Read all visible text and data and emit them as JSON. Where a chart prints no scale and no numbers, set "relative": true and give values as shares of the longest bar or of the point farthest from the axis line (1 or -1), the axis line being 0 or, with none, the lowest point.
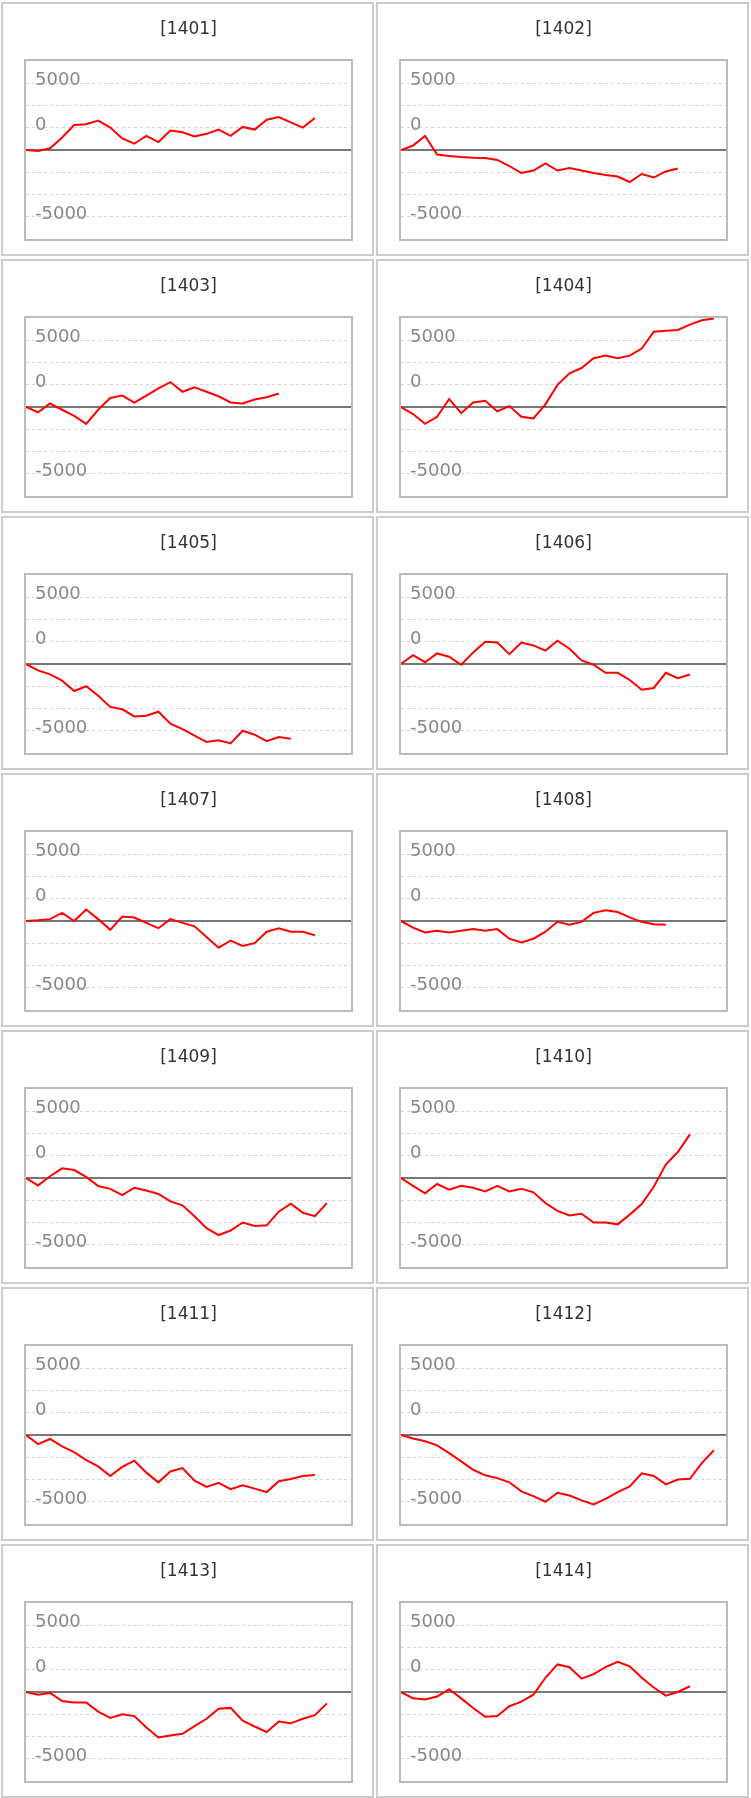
{
  "chart_data": [
    {
      "type": "line",
      "title": "[1401]",
      "relative": true,
      "categories": [
        null,
        null,
        null,
        null,
        null,
        null,
        null,
        null,
        null,
        null,
        null,
        null,
        null,
        null,
        null,
        null,
        null,
        null,
        null,
        null,
        null,
        null,
        null,
        null,
        null,
        null,
        null,
        null
      ],
      "series": [
        {
          "color": "#ff0000",
          "values": [
            0,
            -0.03,
            0.05,
            0.38,
            0.76,
            0.78,
            0.89,
            0.68,
            0.35,
            0.19,
            0.43,
            0.24,
            0.59,
            0.54,
            0.41,
            0.49,
            0.62,
            0.43,
            0.7,
            0.62,
            0.92,
            1,
            0.84,
            0.68,
            0.97,
            null,
            null,
            null
          ]
        }
      ],
      "ylim": [
        -2.7,
        2.7
      ],
      "annotations": [
        "5000",
        "0",
        "-5000"
      ],
      "grid": "y"
    },
    {
      "type": "line",
      "title": "[1402]",
      "relative": true,
      "categories": [
        null,
        null,
        null,
        null,
        null,
        null,
        null,
        null,
        null,
        null,
        null,
        null,
        null,
        null,
        null,
        null,
        null,
        null,
        null,
        null,
        null,
        null,
        null,
        null,
        null,
        null,
        null,
        null
      ],
      "series": [
        {
          "color": "#ff0000",
          "values": [
            0,
            0.14,
            0.44,
            -0.14,
            -0.19,
            -0.22,
            -0.24,
            -0.25,
            -0.31,
            -0.5,
            -0.72,
            -0.64,
            -0.42,
            -0.64,
            -0.56,
            -0.64,
            -0.72,
            -0.78,
            -0.83,
            -1,
            -0.75,
            -0.86,
            -0.67,
            -0.58,
            null,
            null,
            null,
            null
          ]
        }
      ],
      "ylim": [
        -2.78,
        2.78
      ],
      "annotations": [
        "5000",
        "0",
        "-5000"
      ],
      "grid": "y"
    },
    {
      "type": "line",
      "title": "[1403]",
      "relative": true,
      "categories": [
        null,
        null,
        null,
        null,
        null,
        null,
        null,
        null,
        null,
        null,
        null,
        null,
        null,
        null,
        null,
        null,
        null,
        null,
        null,
        null,
        null,
        null,
        null,
        null,
        null,
        null,
        null,
        null
      ],
      "series": [
        {
          "color": "#ff0000",
          "values": [
            0,
            -0.21,
            0.14,
            -0.11,
            -0.36,
            -0.68,
            -0.11,
            0.36,
            0.46,
            0.18,
            0.46,
            0.75,
            1,
            0.61,
            0.79,
            0.61,
            0.43,
            0.18,
            0.14,
            0.3,
            0.39,
            0.54,
            null,
            null,
            null,
            null,
            null,
            null
          ]
        }
      ],
      "ylim": [
        -3.57,
        3.57
      ],
      "annotations": [
        "5000",
        "0",
        "-5000"
      ],
      "grid": "y"
    },
    {
      "type": "line",
      "title": "[1404]",
      "relative": true,
      "categories": [
        null,
        null,
        null,
        null,
        null,
        null,
        null,
        null,
        null,
        null,
        null,
        null,
        null,
        null,
        null,
        null,
        null,
        null,
        null,
        null,
        null,
        null,
        null,
        null,
        null,
        null,
        null,
        null
      ],
      "series": [
        {
          "color": "#ff0000",
          "values": [
            0,
            -0.08,
            -0.19,
            -0.11,
            0.09,
            -0.07,
            0.05,
            0.07,
            -0.05,
            0.01,
            -0.11,
            -0.13,
            0.03,
            0.25,
            0.38,
            0.44,
            0.55,
            0.58,
            0.55,
            0.58,
            0.66,
            0.85,
            0.86,
            0.87,
            0.93,
            0.98,
            1,
            null
          ]
        }
      ],
      "ylim": [
        -1.005,
        1.005
      ],
      "annotations": [
        "5000",
        "0",
        "-5000"
      ],
      "grid": "y"
    },
    {
      "type": "line",
      "title": "[1405]",
      "relative": true,
      "categories": [
        null,
        null,
        null,
        null,
        null,
        null,
        null,
        null,
        null,
        null,
        null,
        null,
        null,
        null,
        null,
        null,
        null,
        null,
        null,
        null,
        null,
        null,
        null,
        null,
        null,
        null,
        null,
        null
      ],
      "series": [
        {
          "color": "#ff0000",
          "values": [
            0,
            -0.08,
            -0.13,
            -0.21,
            -0.34,
            -0.28,
            -0.4,
            -0.54,
            -0.57,
            -0.66,
            -0.65,
            -0.6,
            -0.75,
            -0.82,
            -0.9,
            -0.98,
            -0.96,
            -1,
            -0.84,
            -0.89,
            -0.97,
            -0.92,
            -0.94,
            null,
            null,
            null,
            null,
            null
          ]
        }
      ],
      "ylim": [
        -1.12,
        1.12
      ],
      "annotations": [
        "5000",
        "0",
        "-5000"
      ],
      "grid": "y"
    },
    {
      "type": "line",
      "title": "[1406]",
      "relative": true,
      "categories": [
        null,
        null,
        null,
        null,
        null,
        null,
        null,
        null,
        null,
        null,
        null,
        null,
        null,
        null,
        null,
        null,
        null,
        null,
        null,
        null,
        null,
        null,
        null,
        null,
        null,
        null,
        null,
        null
      ],
      "series": [
        {
          "color": "#ff0000",
          "values": [
            0,
            0.34,
            0.07,
            0.41,
            0.28,
            -0.03,
            0.45,
            0.86,
            0.83,
            0.38,
            0.83,
            0.72,
            0.52,
            0.9,
            0.59,
            0.14,
            -0.03,
            -0.34,
            -0.34,
            -0.62,
            -1,
            -0.93,
            -0.34,
            -0.55,
            -0.41,
            null,
            null,
            null
          ]
        }
      ],
      "ylim": [
        -3.45,
        3.45
      ],
      "annotations": [
        "5000",
        "0",
        "-5000"
      ],
      "grid": "y"
    },
    {
      "type": "line",
      "title": "[1407]",
      "relative": true,
      "categories": [
        null,
        null,
        null,
        null,
        null,
        null,
        null,
        null,
        null,
        null,
        null,
        null,
        null,
        null,
        null,
        null,
        null,
        null,
        null,
        null,
        null,
        null,
        null,
        null,
        null,
        null,
        null,
        null
      ],
      "series": [
        {
          "color": "#ff0000",
          "values": [
            0,
            0.03,
            0.07,
            0.3,
            0,
            0.43,
            0.07,
            -0.33,
            0.17,
            0.13,
            -0.07,
            -0.27,
            0.07,
            -0.07,
            -0.2,
            -0.6,
            -1,
            -0.73,
            -0.93,
            -0.83,
            -0.4,
            -0.27,
            -0.4,
            -0.4,
            -0.53,
            null,
            null,
            null
          ]
        }
      ],
      "ylim": [
        -3.33,
        3.33
      ],
      "annotations": [
        "5000",
        "0",
        "-5000"
      ],
      "grid": "y"
    },
    {
      "type": "line",
      "title": "[1408]",
      "relative": true,
      "categories": [
        null,
        null,
        null,
        null,
        null,
        null,
        null,
        null,
        null,
        null,
        null,
        null,
        null,
        null,
        null,
        null,
        null,
        null,
        null,
        null,
        null,
        null,
        null,
        null,
        null,
        null,
        null,
        null
      ],
      "series": [
        {
          "color": "#ff0000",
          "values": [
            0,
            -0.31,
            -0.54,
            -0.46,
            -0.54,
            -0.46,
            -0.38,
            -0.46,
            -0.38,
            -0.83,
            -1,
            -0.83,
            -0.5,
            -0.04,
            -0.17,
            -0.04,
            0.38,
            0.5,
            0.42,
            0.17,
            -0.04,
            -0.15,
            -0.17,
            null,
            null,
            null,
            null,
            null
          ]
        }
      ],
      "ylim": [
        -4.17,
        4.17
      ],
      "annotations": [
        "5000",
        "0",
        "-5000"
      ],
      "grid": "y"
    },
    {
      "type": "line",
      "title": "[1409]",
      "relative": true,
      "categories": [
        null,
        null,
        null,
        null,
        null,
        null,
        null,
        null,
        null,
        null,
        null,
        null,
        null,
        null,
        null,
        null,
        null,
        null,
        null,
        null,
        null,
        null,
        null,
        null,
        null,
        null,
        null,
        null
      ],
      "series": [
        {
          "color": "#ff0000",
          "values": [
            0,
            -0.13,
            0.03,
            0.17,
            0.14,
            0.02,
            -0.14,
            -0.19,
            -0.3,
            -0.17,
            -0.22,
            -0.28,
            -0.41,
            -0.48,
            -0.67,
            -0.88,
            -1,
            -0.92,
            -0.78,
            -0.84,
            -0.83,
            -0.59,
            -0.45,
            -0.61,
            -0.67,
            -0.44,
            null,
            null
          ]
        }
      ],
      "ylim": [
        -1.56,
        1.56
      ],
      "annotations": [
        "5000",
        "0",
        "-5000"
      ],
      "grid": "y"
    },
    {
      "type": "line",
      "title": "[1410]",
      "relative": true,
      "categories": [
        null,
        null,
        null,
        null,
        null,
        null,
        null,
        null,
        null,
        null,
        null,
        null,
        null,
        null,
        null,
        null,
        null,
        null,
        null,
        null,
        null,
        null,
        null,
        null,
        null,
        null,
        null,
        null
      ],
      "series": [
        {
          "color": "#ff0000",
          "values": [
            0,
            -0.17,
            -0.33,
            -0.13,
            -0.25,
            -0.17,
            -0.21,
            -0.29,
            -0.17,
            -0.29,
            -0.23,
            -0.31,
            -0.54,
            -0.71,
            -0.81,
            -0.77,
            -0.96,
            -0.96,
            -1,
            -0.79,
            -0.56,
            -0.19,
            0.29,
            0.56,
            0.94,
            null,
            null,
            null
          ]
        }
      ],
      "ylim": [
        -1.92,
        1.92
      ],
      "annotations": [
        "5000",
        "0",
        "-5000"
      ],
      "grid": "y"
    },
    {
      "type": "line",
      "title": "[1411]",
      "relative": true,
      "categories": [
        null,
        null,
        null,
        null,
        null,
        null,
        null,
        null,
        null,
        null,
        null,
        null,
        null,
        null,
        null,
        null,
        null,
        null,
        null,
        null,
        null,
        null,
        null,
        null,
        null,
        null,
        null,
        null
      ],
      "series": [
        {
          "color": "#ff0000",
          "values": [
            0,
            -0.16,
            -0.07,
            -0.2,
            -0.3,
            -0.44,
            -0.55,
            -0.72,
            -0.56,
            -0.45,
            -0.66,
            -0.83,
            -0.64,
            -0.58,
            -0.8,
            -0.91,
            -0.84,
            -0.95,
            -0.88,
            -0.94,
            -1,
            -0.81,
            -0.77,
            -0.72,
            -0.7,
            null,
            null,
            null
          ]
        }
      ],
      "ylim": [
        -1.56,
        1.56
      ],
      "annotations": [
        "5000",
        "0",
        "-5000"
      ],
      "grid": "y"
    },
    {
      "type": "line",
      "title": "[1412]",
      "relative": true,
      "categories": [
        null,
        null,
        null,
        null,
        null,
        null,
        null,
        null,
        null,
        null,
        null,
        null,
        null,
        null,
        null,
        null,
        null,
        null,
        null,
        null,
        null,
        null,
        null,
        null,
        null,
        null,
        null,
        null
      ],
      "series": [
        {
          "color": "#ff0000",
          "values": [
            0,
            -0.05,
            -0.09,
            -0.15,
            -0.26,
            -0.38,
            -0.5,
            -0.58,
            -0.62,
            -0.68,
            -0.81,
            -0.88,
            -0.96,
            -0.83,
            -0.87,
            -0.94,
            -1,
            -0.92,
            -0.82,
            -0.74,
            -0.55,
            -0.59,
            -0.71,
            -0.64,
            -0.63,
            -0.4,
            -0.22,
            null
          ]
        }
      ],
      "ylim": [
        -1.28,
        1.28
      ],
      "annotations": [
        "5000",
        "0",
        "-5000"
      ],
      "grid": "y"
    },
    {
      "type": "line",
      "title": "[1413]",
      "relative": true,
      "categories": [
        null,
        null,
        null,
        null,
        null,
        null,
        null,
        null,
        null,
        null,
        null,
        null,
        null,
        null,
        null,
        null,
        null,
        null,
        null,
        null,
        null,
        null,
        null,
        null,
        null,
        null,
        null,
        null
      ],
      "series": [
        {
          "color": "#ff0000",
          "values": [
            0,
            -0.06,
            -0.02,
            -0.2,
            -0.23,
            -0.23,
            -0.43,
            -0.57,
            -0.49,
            -0.53,
            -0.78,
            -1,
            -0.96,
            -0.92,
            -0.75,
            -0.59,
            -0.37,
            -0.35,
            -0.63,
            -0.76,
            -0.88,
            -0.65,
            -0.69,
            -0.59,
            -0.51,
            -0.25,
            null,
            null
          ]
        }
      ],
      "ylim": [
        -1.96,
        1.96
      ],
      "annotations": [
        "5000",
        "0",
        "-5000"
      ],
      "grid": "y"
    },
    {
      "type": "line",
      "title": "[1414]",
      "relative": true,
      "categories": [
        null,
        null,
        null,
        null,
        null,
        null,
        null,
        null,
        null,
        null,
        null,
        null,
        null,
        null,
        null,
        null,
        null,
        null,
        null,
        null,
        null,
        null,
        null,
        null,
        null,
        null,
        null,
        null
      ],
      "series": [
        {
          "color": "#ff0000",
          "values": [
            0,
            -0.21,
            -0.25,
            -0.15,
            0.09,
            -0.21,
            -0.53,
            -0.82,
            -0.79,
            -0.47,
            -0.32,
            -0.09,
            0.47,
            0.91,
            0.82,
            0.44,
            0.59,
            0.82,
            1,
            0.85,
            0.47,
            0.15,
            -0.12,
            0,
            0.19,
            null,
            null,
            null
          ]
        }
      ],
      "ylim": [
        -2.94,
        2.94
      ],
      "annotations": [
        "5000",
        "0",
        "-5000"
      ],
      "grid": "y"
    }
  ]
}
